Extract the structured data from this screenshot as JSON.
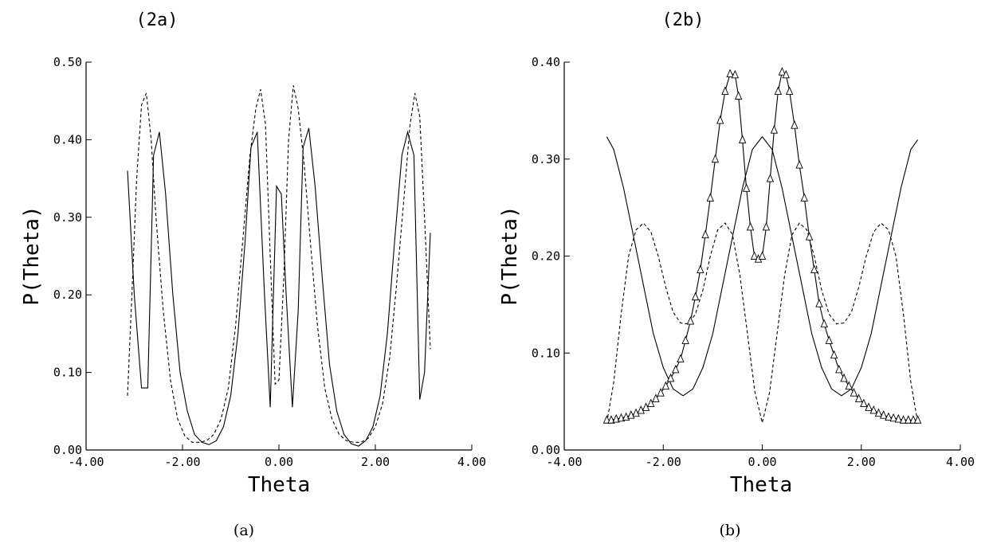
{
  "chart_data": [
    {
      "type": "line",
      "title": "(2a)",
      "caption": "(a)",
      "xlabel": "Theta",
      "ylabel": "P(Theta)",
      "xlim": [
        -4.0,
        4.0
      ],
      "ylim": [
        0.0,
        0.5
      ],
      "xticks": [
        "-4.00",
        "-2.00",
        "0.00",
        "2.00",
        "4.00"
      ],
      "yticks": [
        "0.00",
        "0.10",
        "0.20",
        "0.30",
        "0.40",
        "0.50"
      ],
      "grid": false,
      "series": [
        {
          "style": "solid",
          "marker": "none",
          "x": [
            -3.14,
            -3.0,
            -2.85,
            -2.72,
            -2.6,
            -2.48,
            -2.35,
            -2.2,
            -2.05,
            -1.9,
            -1.75,
            -1.6,
            -1.45,
            -1.3,
            -1.15,
            -1.0,
            -0.85,
            -0.7,
            -0.58,
            -0.45,
            -0.3,
            -0.18,
            -0.05,
            0.05,
            0.15,
            0.28,
            0.4,
            0.5,
            0.62,
            0.75,
            0.9,
            1.05,
            1.2,
            1.35,
            1.5,
            1.65,
            1.8,
            1.95,
            2.1,
            2.25,
            2.4,
            2.55,
            2.67,
            2.8,
            2.92,
            3.02,
            3.14
          ],
          "y": [
            0.36,
            0.2,
            0.08,
            0.08,
            0.38,
            0.41,
            0.33,
            0.2,
            0.1,
            0.05,
            0.02,
            0.01,
            0.007,
            0.012,
            0.03,
            0.07,
            0.15,
            0.27,
            0.39,
            0.41,
            0.2,
            0.055,
            0.34,
            0.33,
            0.2,
            0.055,
            0.18,
            0.39,
            0.415,
            0.34,
            0.22,
            0.11,
            0.05,
            0.02,
            0.008,
            0.005,
            0.012,
            0.03,
            0.07,
            0.15,
            0.27,
            0.38,
            0.41,
            0.38,
            0.065,
            0.1,
            0.28
          ]
        },
        {
          "style": "dashed",
          "marker": "none",
          "x": [
            -3.14,
            -3.05,
            -2.95,
            -2.85,
            -2.75,
            -2.65,
            -2.55,
            -2.4,
            -2.25,
            -2.1,
            -1.95,
            -1.8,
            -1.65,
            -1.5,
            -1.35,
            -1.2,
            -1.05,
            -0.9,
            -0.75,
            -0.6,
            -0.48,
            -0.38,
            -0.28,
            -0.18,
            -0.08,
            0.0,
            0.1,
            0.2,
            0.3,
            0.4,
            0.52,
            0.65,
            0.8,
            0.95,
            1.1,
            1.25,
            1.4,
            1.55,
            1.7,
            1.85,
            2.0,
            2.15,
            2.3,
            2.45,
            2.6,
            2.72,
            2.82,
            2.92,
            3.02,
            3.14
          ],
          "y": [
            0.07,
            0.2,
            0.35,
            0.445,
            0.46,
            0.4,
            0.3,
            0.18,
            0.09,
            0.04,
            0.018,
            0.01,
            0.01,
            0.012,
            0.02,
            0.04,
            0.08,
            0.16,
            0.27,
            0.38,
            0.44,
            0.465,
            0.42,
            0.25,
            0.085,
            0.09,
            0.22,
            0.4,
            0.47,
            0.44,
            0.37,
            0.27,
            0.16,
            0.08,
            0.04,
            0.02,
            0.012,
            0.01,
            0.01,
            0.015,
            0.03,
            0.06,
            0.12,
            0.22,
            0.33,
            0.42,
            0.46,
            0.43,
            0.3,
            0.13
          ]
        }
      ]
    },
    {
      "type": "line",
      "title": "(2b)",
      "caption": "(b)",
      "xlabel": "Theta",
      "ylabel": "P(Theta)",
      "xlim": [
        -4.0,
        4.0
      ],
      "ylim": [
        0.0,
        0.4
      ],
      "xticks": [
        "-4.00",
        "-2.00",
        "0.00",
        "2.00",
        "4.00"
      ],
      "yticks": [
        "0.00",
        "0.10",
        "0.20",
        "0.30",
        "0.40"
      ],
      "grid": false,
      "series": [
        {
          "style": "solid",
          "marker": "none",
          "x": [
            -3.14,
            -3.0,
            -2.8,
            -2.6,
            -2.4,
            -2.2,
            -2.0,
            -1.8,
            -1.6,
            -1.4,
            -1.2,
            -1.0,
            -0.8,
            -0.6,
            -0.4,
            -0.2,
            0.0,
            0.2,
            0.4,
            0.6,
            0.8,
            1.0,
            1.2,
            1.4,
            1.6,
            1.8,
            2.0,
            2.2,
            2.4,
            2.6,
            2.8,
            3.0,
            3.14
          ],
          "y": [
            0.323,
            0.31,
            0.27,
            0.22,
            0.17,
            0.12,
            0.085,
            0.063,
            0.056,
            0.063,
            0.085,
            0.12,
            0.17,
            0.22,
            0.27,
            0.31,
            0.323,
            0.31,
            0.27,
            0.22,
            0.17,
            0.12,
            0.085,
            0.063,
            0.056,
            0.063,
            0.085,
            0.12,
            0.17,
            0.22,
            0.27,
            0.31,
            0.32
          ]
        },
        {
          "style": "dashed",
          "marker": "none",
          "x": [
            -3.14,
            -3.0,
            -2.85,
            -2.7,
            -2.55,
            -2.4,
            -2.25,
            -2.1,
            -1.95,
            -1.8,
            -1.65,
            -1.5,
            -1.35,
            -1.2,
            -1.05,
            -0.9,
            -0.75,
            -0.6,
            -0.45,
            -0.3,
            -0.15,
            0.0,
            0.15,
            0.3,
            0.45,
            0.6,
            0.75,
            0.9,
            1.05,
            1.2,
            1.35,
            1.5,
            1.65,
            1.8,
            1.95,
            2.1,
            2.25,
            2.4,
            2.55,
            2.7,
            2.85,
            3.0,
            3.14
          ],
          "y": [
            0.028,
            0.07,
            0.14,
            0.2,
            0.227,
            0.234,
            0.225,
            0.2,
            0.168,
            0.142,
            0.131,
            0.13,
            0.14,
            0.165,
            0.2,
            0.227,
            0.234,
            0.222,
            0.18,
            0.12,
            0.06,
            0.028,
            0.06,
            0.12,
            0.18,
            0.222,
            0.234,
            0.227,
            0.2,
            0.165,
            0.14,
            0.13,
            0.131,
            0.142,
            0.168,
            0.2,
            0.225,
            0.234,
            0.227,
            0.2,
            0.14,
            0.07,
            0.028
          ]
        },
        {
          "style": "solid",
          "marker": "triangle",
          "x": [
            -3.14,
            -3.05,
            -2.95,
            -2.85,
            -2.75,
            -2.65,
            -2.55,
            -2.45,
            -2.35,
            -2.25,
            -2.15,
            -2.05,
            -1.95,
            -1.85,
            -1.75,
            -1.65,
            -1.55,
            -1.45,
            -1.35,
            -1.25,
            -1.15,
            -1.05,
            -0.95,
            -0.85,
            -0.75,
            -0.65,
            -0.55,
            -0.48,
            -0.4,
            -0.32,
            -0.24,
            -0.16,
            -0.08,
            0.0,
            0.08,
            0.16,
            0.24,
            0.32,
            0.4,
            0.48,
            0.55,
            0.65,
            0.75,
            0.85,
            0.95,
            1.05,
            1.15,
            1.25,
            1.35,
            1.45,
            1.55,
            1.65,
            1.75,
            1.85,
            1.95,
            2.05,
            2.15,
            2.25,
            2.35,
            2.45,
            2.55,
            2.65,
            2.75,
            2.85,
            2.95,
            3.05,
            3.14
          ],
          "y": [
            0.031,
            0.031,
            0.032,
            0.033,
            0.034,
            0.036,
            0.038,
            0.041,
            0.044,
            0.048,
            0.053,
            0.059,
            0.066,
            0.074,
            0.083,
            0.094,
            0.113,
            0.133,
            0.158,
            0.186,
            0.222,
            0.26,
            0.3,
            0.34,
            0.37,
            0.388,
            0.387,
            0.365,
            0.32,
            0.27,
            0.23,
            0.2,
            0.197,
            0.2,
            0.23,
            0.28,
            0.33,
            0.37,
            0.39,
            0.387,
            0.37,
            0.335,
            0.294,
            0.26,
            0.22,
            0.186,
            0.151,
            0.13,
            0.113,
            0.098,
            0.083,
            0.074,
            0.066,
            0.059,
            0.053,
            0.048,
            0.044,
            0.041,
            0.038,
            0.036,
            0.034,
            0.033,
            0.032,
            0.031,
            0.031,
            0.031,
            0.031
          ]
        }
      ]
    }
  ]
}
